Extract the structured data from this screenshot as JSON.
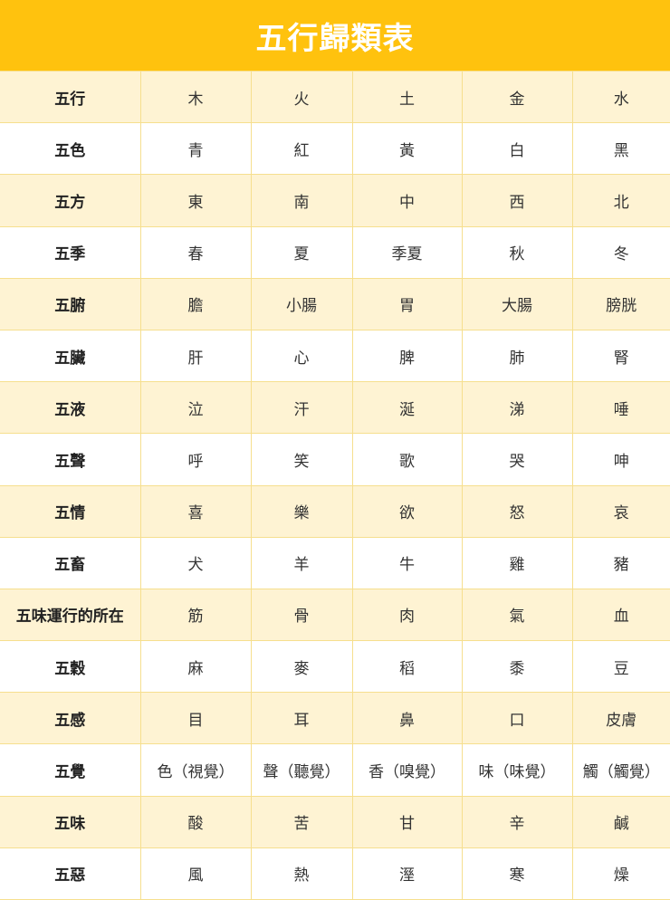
{
  "title": "五行歸類表",
  "colors": {
    "header": "#FFC20E",
    "odd_row": "#FEF3D3",
    "even_row": "#FFFFFF",
    "border": "#F6DF8E"
  },
  "rows": [
    {
      "label": "五行",
      "cells": [
        "木",
        "火",
        "土",
        "金",
        "水"
      ]
    },
    {
      "label": "五色",
      "cells": [
        "青",
        "紅",
        "黃",
        "白",
        "黑"
      ]
    },
    {
      "label": "五方",
      "cells": [
        "東",
        "南",
        "中",
        "西",
        "北"
      ]
    },
    {
      "label": "五季",
      "cells": [
        "春",
        "夏",
        "季夏",
        "秋",
        "冬"
      ]
    },
    {
      "label": "五腑",
      "cells": [
        "膽",
        "小腸",
        "胃",
        "大腸",
        "膀胱"
      ]
    },
    {
      "label": "五臟",
      "cells": [
        "肝",
        "心",
        "脾",
        "肺",
        "腎"
      ]
    },
    {
      "label": "五液",
      "cells": [
        "泣",
        "汗",
        "涎",
        "涕",
        "唾"
      ]
    },
    {
      "label": "五聲",
      "cells": [
        "呼",
        "笑",
        "歌",
        "哭",
        "呻"
      ]
    },
    {
      "label": "五情",
      "cells": [
        "喜",
        "樂",
        "欲",
        "怒",
        "哀"
      ]
    },
    {
      "label": "五畜",
      "cells": [
        "犬",
        "羊",
        "牛",
        "雞",
        "豬"
      ]
    },
    {
      "label": "五味運行的所在",
      "cells": [
        "筋",
        "骨",
        "肉",
        "氣",
        "血"
      ]
    },
    {
      "label": "五穀",
      "cells": [
        "麻",
        "麥",
        "稻",
        "黍",
        "豆"
      ]
    },
    {
      "label": "五感",
      "cells": [
        "目",
        "耳",
        "鼻",
        "口",
        "皮膚"
      ]
    },
    {
      "label": "五覺",
      "cells": [
        "色（視覺）",
        "聲（聽覺）",
        "香（嗅覺）",
        "味（味覺）",
        "觸（觸覺）"
      ]
    },
    {
      "label": "五味",
      "cells": [
        "酸",
        "苦",
        "甘",
        "辛",
        "鹹"
      ]
    },
    {
      "label": "五惡",
      "cells": [
        "風",
        "熱",
        "溼",
        "寒",
        "燥"
      ]
    }
  ]
}
